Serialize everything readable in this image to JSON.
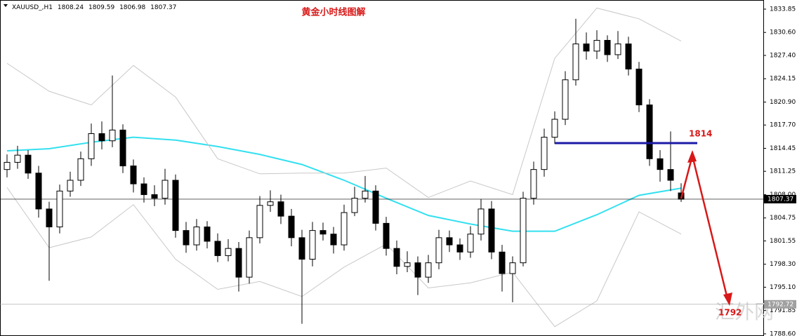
{
  "chart_data": {
    "type": "candlestick",
    "title": "黄金小时线图解",
    "symbol": "XAUUSD_,H1",
    "watermark": "汇外网",
    "open": [
      1811.5,
      1812.5,
      1813.5,
      1811.0,
      1806.0,
      1803.5,
      1808.5,
      1810.0,
      1813.0,
      1816.5,
      1815.5,
      1817.0,
      1812.0,
      1809.5,
      1808.0,
      1807.5,
      1810.0,
      1803.0,
      1801.0,
      1803.5,
      1801.5,
      1799.5,
      1800.5,
      1796.5,
      1802.0,
      1806.5,
      1807.0,
      1805.0,
      1802.0,
      1799.0,
      1803.0,
      1802.5,
      1801.0,
      1805.5,
      1807.5,
      1808.5,
      1804.0,
      1800.5,
      1798.0,
      1798.5,
      1796.5,
      1798.5,
      1802.0,
      1801.0,
      1800.0,
      1802.5,
      1806.0,
      1800.0,
      1797.0,
      1798.5,
      1807.5,
      1811.5,
      1816.0,
      1818.5,
      1824.0,
      1829.0,
      1828.0,
      1829.5,
      1827.5,
      1829.0,
      1825.5,
      1820.5,
      1813.0,
      1811.5,
      1808.24
    ],
    "high": [
      1813.6,
      1814.8,
      1814.2,
      1812.0,
      1807.0,
      1809.4,
      1811.2,
      1814.0,
      1817.9,
      1818.2,
      1824.6,
      1817.8,
      1812.9,
      1810.4,
      1809.3,
      1811.6,
      1810.8,
      1804.2,
      1804.6,
      1804.3,
      1802.6,
      1801.8,
      1801.4,
      1803.0,
      1807.8,
      1808.6,
      1808.0,
      1806.0,
      1803.1,
      1804.2,
      1804.1,
      1803.5,
      1806.6,
      1809.1,
      1810.6,
      1809.3,
      1804.9,
      1801.6,
      1800.1,
      1799.4,
      1799.6,
      1803.1,
      1803.0,
      1801.9,
      1803.6,
      1807.4,
      1807.1,
      1801.0,
      1799.4,
      1808.4,
      1812.6,
      1817.2,
      1819.6,
      1825.2,
      1832.5,
      1830.6,
      1830.9,
      1830.2,
      1830.8,
      1830.0,
      1826.5,
      1821.3,
      1814.2,
      1816.8,
      1809.59
    ],
    "low": [
      1810.4,
      1811.6,
      1810.2,
      1804.8,
      1796.0,
      1802.6,
      1807.7,
      1809.2,
      1812.0,
      1814.3,
      1814.6,
      1811.0,
      1808.3,
      1806.9,
      1806.4,
      1806.6,
      1802.0,
      1799.9,
      1800.2,
      1800.5,
      1798.6,
      1798.7,
      1794.5,
      1795.6,
      1801.2,
      1805.6,
      1803.9,
      1800.8,
      1790.0,
      1798.0,
      1801.6,
      1799.8,
      1800.2,
      1805.0,
      1806.9,
      1803.0,
      1799.5,
      1796.9,
      1797.2,
      1794.0,
      1795.7,
      1797.6,
      1800.0,
      1798.9,
      1799.2,
      1801.6,
      1799.0,
      1794.5,
      1793.0,
      1798.0,
      1806.6,
      1810.5,
      1815.1,
      1817.7,
      1823.2,
      1826.8,
      1826.9,
      1826.5,
      1826.9,
      1824.6,
      1819.5,
      1812.0,
      1809.8,
      1808.5,
      1806.98
    ],
    "close": [
      1812.5,
      1813.5,
      1811.0,
      1806.0,
      1803.5,
      1808.5,
      1810.0,
      1813.0,
      1816.5,
      1815.5,
      1817.0,
      1812.0,
      1809.5,
      1808.0,
      1807.5,
      1810.0,
      1803.0,
      1801.0,
      1803.5,
      1801.5,
      1799.5,
      1800.5,
      1796.5,
      1802.0,
      1806.5,
      1807.0,
      1805.0,
      1802.0,
      1799.0,
      1803.0,
      1802.5,
      1801.0,
      1805.5,
      1807.5,
      1808.5,
      1804.0,
      1800.5,
      1798.0,
      1798.5,
      1796.5,
      1798.5,
      1802.0,
      1801.0,
      1800.0,
      1802.5,
      1806.0,
      1800.0,
      1797.0,
      1798.5,
      1807.5,
      1811.5,
      1816.0,
      1818.5,
      1824.0,
      1829.0,
      1828.0,
      1829.5,
      1827.5,
      1829.0,
      1825.5,
      1820.5,
      1813.0,
      1811.5,
      1810.0,
      1807.37
    ],
    "series": [
      {
        "color": "#33e0f0",
        "x": [
          0,
          4,
          8,
          12,
          16,
          20,
          24,
          28,
          32,
          36,
          40,
          44,
          48,
          52,
          56,
          60,
          64
        ],
        "values": [
          1814.1,
          1814.4,
          1815.3,
          1816.0,
          1815.6,
          1814.7,
          1813.6,
          1812.2,
          1810.0,
          1807.5,
          1805.1,
          1803.9,
          1802.9,
          1802.9,
          1805.2,
          1807.9,
          1808.9
        ]
      },
      {
        "color": "#c8c8c8",
        "x": [
          0,
          4,
          8,
          12,
          16,
          20,
          24,
          28,
          32,
          36,
          40,
          44,
          48,
          52,
          56,
          60,
          64
        ],
        "values": [
          1826.3,
          1822.4,
          1820.5,
          1826.0,
          1821.6,
          1813.0,
          1810.9,
          1811.0,
          1811.0,
          1811.7,
          1807.6,
          1809.9,
          1808.0,
          1827.0,
          1834.0,
          1832.5,
          1829.4
        ]
      },
      {
        "color": "#c8c8c8",
        "x": [
          0,
          4,
          8,
          12,
          16,
          20,
          24,
          28,
          32,
          36,
          40,
          44,
          48,
          52,
          56,
          60,
          64
        ],
        "values": [
          1809.0,
          1800.6,
          1802.1,
          1806.6,
          1799.0,
          1794.8,
          1795.9,
          1793.8,
          1797.9,
          1801.1,
          1795.0,
          1795.7,
          1797.2,
          1789.6,
          1793.2,
          1805.6,
          1802.5
        ]
      }
    ],
    "price_lines": [
      {
        "value": 1807.37,
        "color": "#000000"
      },
      {
        "value": 1792.72,
        "color": "#a0a0a0"
      }
    ],
    "annotations": [
      {
        "text": "1814"
      },
      {
        "text": "1792"
      }
    ],
    "ylim": [
      1788.3,
      1835.12
    ],
    "yticks": [
      1833.85,
      {
        "value": 1830.6,
        "label": "1830.60"
      },
      {
        "value": 1827.4,
        "label": "1827.40"
      },
      1824.15,
      {
        "value": 1820.9,
        "label": "1820.90"
      },
      {
        "value": 1817.7,
        "label": "1817.70"
      },
      1814.45,
      1811.25,
      {
        "value": 1808,
        "label": "1808.00"
      },
      1804.75,
      1801.55,
      {
        "value": 1798.3,
        "label": "1798.30"
      },
      {
        "value": 1795.1,
        "label": "1795.10"
      },
      1791.85,
      {
        "value": 1788.6,
        "label": "1788.60"
      }
    ]
  }
}
